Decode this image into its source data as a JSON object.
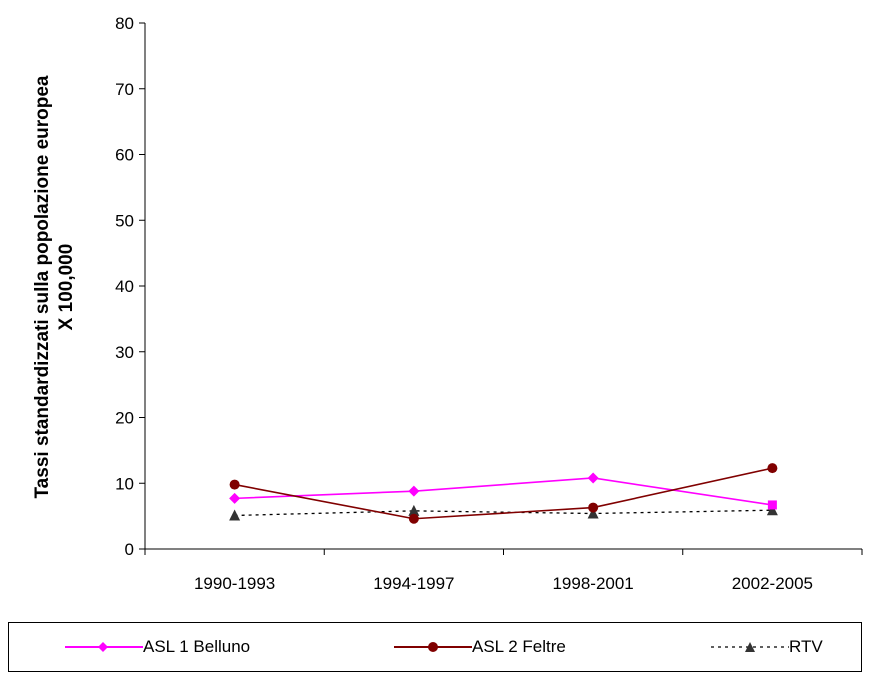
{
  "chart_data": {
    "type": "line",
    "categories": [
      "1990-1993",
      "1994-1997",
      "1998-2001",
      "2002-2005"
    ],
    "ylabel_line1": "Tassi standardizzati sulla popolazione europea",
    "ylabel_line2": "X 100,000",
    "ylim": [
      0,
      80
    ],
    "yticks": [
      0,
      10,
      20,
      30,
      40,
      50,
      60,
      70,
      80
    ],
    "grid": false,
    "legend_position": "bottom",
    "series": [
      {
        "name": "ASL 1 Belluno",
        "values": [
          7.7,
          8.8,
          10.8,
          6.7
        ],
        "color": "#ff00ff",
        "marker": "diamond",
        "line": "solid"
      },
      {
        "name": "ASL 2 Feltre",
        "values": [
          9.8,
          4.6,
          6.3,
          12.3
        ],
        "color": "#800000",
        "marker": "circle",
        "line": "solid"
      },
      {
        "name": "RTV",
        "values": [
          5.1,
          5.8,
          5.4,
          5.9
        ],
        "color": "#000000",
        "marker_color": "#333333",
        "marker": "triangle",
        "line": "dotted"
      }
    ]
  }
}
